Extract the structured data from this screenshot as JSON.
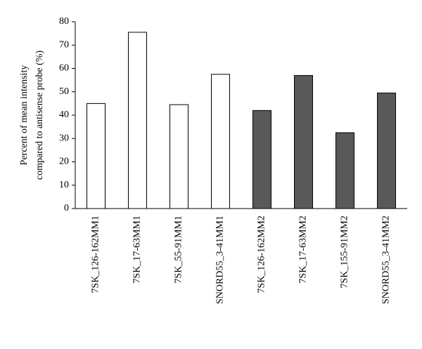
{
  "chart_data": {
    "type": "bar",
    "ylabel": [
      "Percent of mean intensity",
      "compared to antisense probe (%)"
    ],
    "categories": [
      "7SK_126-162MM1",
      "7SK_17-63MM1",
      "7SK_55-91MM1",
      "SNORD55_3-41MM1",
      "7SK_126-162MM2",
      "7SK_17-63MM2",
      "7SK_155-91MM2",
      "SNORD55_3-41MM2"
    ],
    "values": [
      45,
      75.5,
      44.5,
      57.5,
      42,
      57,
      32.5,
      49.5
    ],
    "colors": [
      "#ffffff",
      "#ffffff",
      "#ffffff",
      "#ffffff",
      "#595959",
      "#595959",
      "#595959",
      "#595959"
    ],
    "ylim": [
      0,
      80
    ],
    "yticks": [
      0,
      10,
      20,
      30,
      40,
      50,
      60,
      70,
      80
    ],
    "grid": false
  }
}
